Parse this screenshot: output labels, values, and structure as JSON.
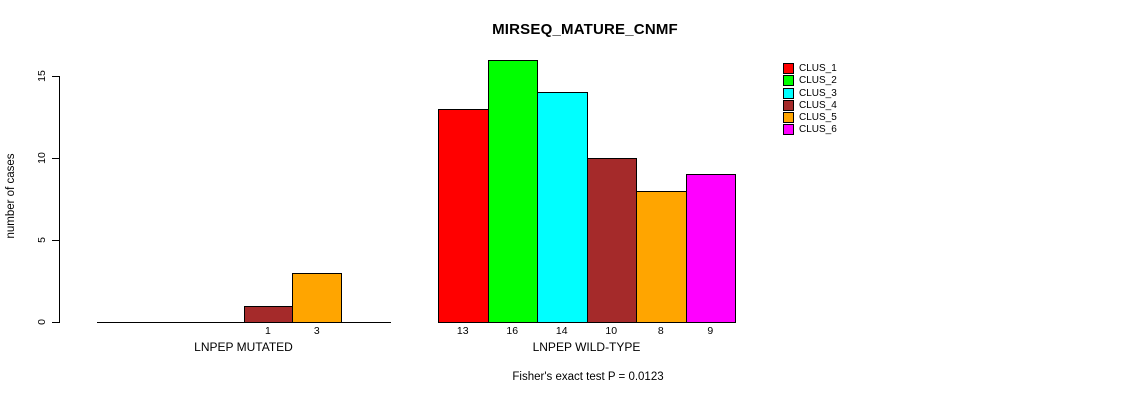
{
  "chart_data": {
    "type": "bar",
    "title": "MIRSEQ_MATURE_CNMF",
    "ylabel": "number of cases",
    "ylim": [
      0,
      15
    ],
    "yticks": [
      0,
      5,
      10,
      15
    ],
    "grid": false,
    "legend_position": "top-right",
    "series": [
      {
        "name": "CLUS_1",
        "color": "#FF0000"
      },
      {
        "name": "CLUS_2",
        "color": "#00FF00"
      },
      {
        "name": "CLUS_3",
        "color": "#00FFFF"
      },
      {
        "name": "CLUS_4",
        "color": "#A52A2A"
      },
      {
        "name": "CLUS_5",
        "color": "#FFA500"
      },
      {
        "name": "CLUS_6",
        "color": "#FF00FF"
      }
    ],
    "groups": [
      {
        "label": "LNPEP MUTATED",
        "values": [
          0,
          0,
          0,
          1,
          3,
          0
        ],
        "bar_labels": [
          "",
          "",
          "",
          "1",
          "3",
          ""
        ]
      },
      {
        "label": "LNPEP WILD-TYPE",
        "values": [
          13,
          16,
          14,
          10,
          8,
          9
        ],
        "bar_labels": [
          "13",
          "16",
          "14",
          "10",
          "8",
          "9"
        ]
      }
    ],
    "annotation": "Fisher's exact test P = 0.0123"
  }
}
